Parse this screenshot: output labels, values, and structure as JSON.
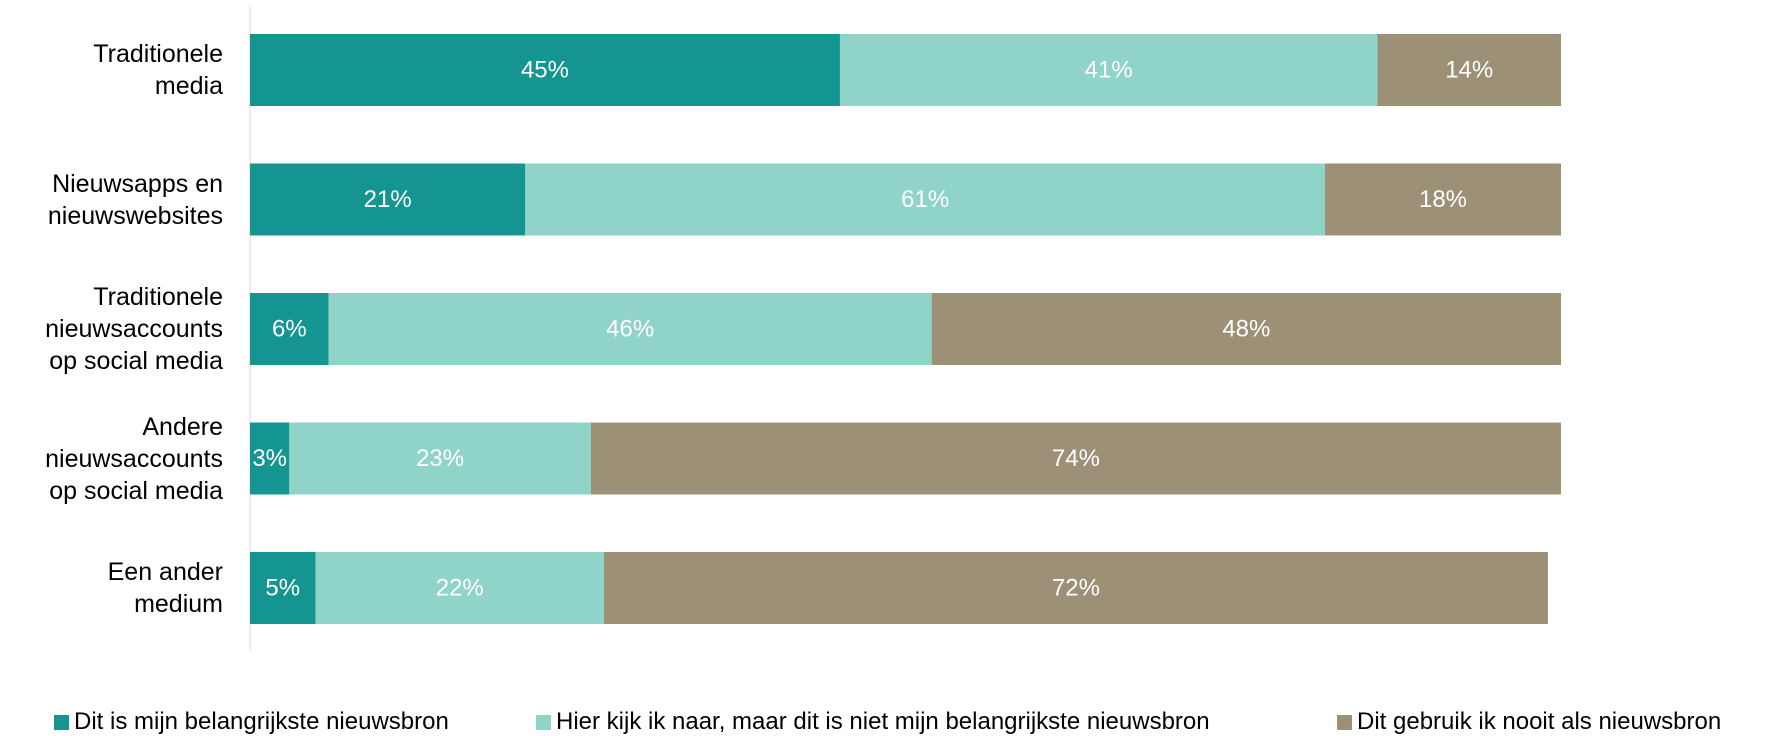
{
  "chart_data": {
    "type": "stacked-bar-horizontal",
    "categories": [
      "Traditionele\nmedia",
      "Nieuwsapps en\nnieuwswebsites",
      "Traditionele\nnieuwsaccounts\nop social media",
      "Andere\nnieuwsaccounts\nop social media",
      "Een ander\nmedium"
    ],
    "series": [
      {
        "name": "Dit is mijn belangrijkste nieuwsbron",
        "color": "#159591",
        "values": [
          45,
          21,
          6,
          3,
          5
        ],
        "value_labels": [
          "45%",
          "21%",
          "6%",
          "3%",
          "5%"
        ]
      },
      {
        "name": "Hier kijk ik naar, maar dit is niet mijn belangrijkste nieuwsbron",
        "color": "#8fd3c9",
        "values": [
          41,
          61,
          46,
          23,
          22
        ],
        "value_labels": [
          "41%",
          "61%",
          "46%",
          "23%",
          "22%"
        ]
      },
      {
        "name": "Dit gebruik ik nooit als nieuwsbron",
        "color": "#9c9176",
        "values": [
          14,
          18,
          48,
          74,
          72
        ],
        "value_labels": [
          "14%",
          "18%",
          "48%",
          "74%",
          "72%"
        ]
      }
    ],
    "xlim": [
      0,
      100
    ]
  }
}
